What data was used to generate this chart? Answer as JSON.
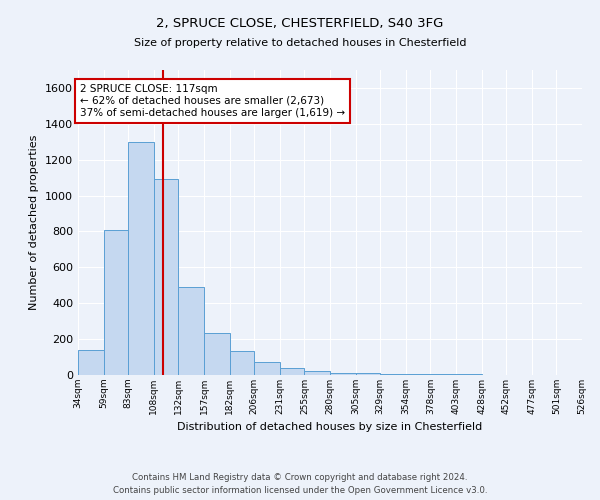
{
  "title1": "2, SPRUCE CLOSE, CHESTERFIELD, S40 3FG",
  "title2": "Size of property relative to detached houses in Chesterfield",
  "xlabel": "Distribution of detached houses by size in Chesterfield",
  "ylabel": "Number of detached properties",
  "bar_edges": [
    34,
    59,
    83,
    108,
    132,
    157,
    182,
    206,
    231,
    255,
    280,
    305,
    329,
    354,
    378,
    403,
    428,
    452,
    477,
    501,
    526
  ],
  "bar_heights": [
    140,
    810,
    1300,
    1090,
    490,
    235,
    135,
    75,
    40,
    20,
    10,
    10,
    5,
    5,
    3,
    3,
    2,
    1,
    1,
    1
  ],
  "bar_color": "#c5d8f0",
  "bar_edge_color": "#5a9fd4",
  "vline_x": 117,
  "vline_color": "#cc0000",
  "annotation_text": "2 SPRUCE CLOSE: 117sqm\n← 62% of detached houses are smaller (2,673)\n37% of semi-detached houses are larger (1,619) →",
  "annotation_box_color": "#ffffff",
  "annotation_box_edge": "#cc0000",
  "ylim": [
    0,
    1700
  ],
  "yticks": [
    0,
    200,
    400,
    600,
    800,
    1000,
    1200,
    1400,
    1600
  ],
  "xtick_labels": [
    "34sqm",
    "59sqm",
    "83sqm",
    "108sqm",
    "132sqm",
    "157sqm",
    "182sqm",
    "206sqm",
    "231sqm",
    "255sqm",
    "280sqm",
    "305sqm",
    "329sqm",
    "354sqm",
    "378sqm",
    "403sqm",
    "428sqm",
    "452sqm",
    "477sqm",
    "501sqm",
    "526sqm"
  ],
  "footer": "Contains HM Land Registry data © Crown copyright and database right 2024.\nContains public sector information licensed under the Open Government Licence v3.0.",
  "bg_color": "#edf2fa",
  "plot_bg_color": "#edf2fa"
}
